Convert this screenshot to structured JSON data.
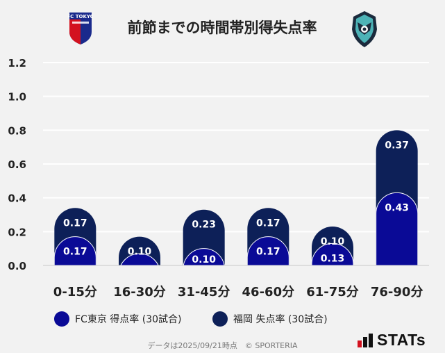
{
  "title": "前節までの時間帯別得失点率",
  "home_crest_text": "FC TOKYO",
  "colors": {
    "home": "#0a0a96",
    "away": "#0d2058",
    "grid": "#ffffff"
  },
  "legend": {
    "home": "FC東京 得点率 (30試合)",
    "away": "福岡 失点率 (30試合)"
  },
  "footer": "データは2025/09/21時点　© SPORTERIA",
  "brand": "STATs",
  "chart_data": {
    "type": "bar",
    "stacked": true,
    "categories": [
      "0-15分",
      "16-30分",
      "31-45分",
      "46-60分",
      "61-75分",
      "76-90分"
    ],
    "series": [
      {
        "name": "FC東京 得点率 (30試合)",
        "values": [
          0.17,
          0.07,
          0.1,
          0.17,
          0.13,
          0.43
        ],
        "labels": [
          "0.17",
          "",
          "0.10",
          "0.17",
          "0.13",
          "0.43"
        ]
      },
      {
        "name": "福岡 失点率 (30試合)",
        "values": [
          0.17,
          0.1,
          0.23,
          0.17,
          0.1,
          0.37
        ],
        "labels": [
          "0.17",
          "0.10",
          "0.23",
          "0.17",
          "0.10",
          "0.37"
        ]
      }
    ],
    "ylim": [
      0,
      1.2
    ],
    "yticks": [
      "0.0",
      "0.2",
      "0.4",
      "0.6",
      "0.8",
      "1.0",
      "1.2"
    ],
    "grid": true
  }
}
